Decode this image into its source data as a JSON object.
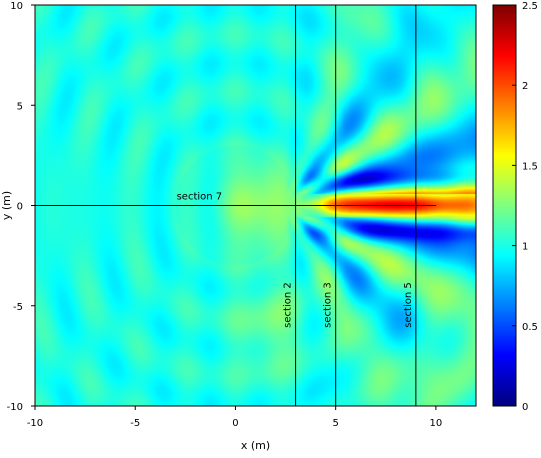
{
  "chart_data": {
    "type": "heatmap",
    "title": "",
    "xlabel": "x (m)",
    "ylabel": "y (m)",
    "xlim": [
      -10,
      12
    ],
    "ylim": [
      -10,
      10
    ],
    "x_ticks": [
      -10,
      -5,
      0,
      5,
      10
    ],
    "y_ticks": [
      -10,
      -5,
      0,
      5,
      10
    ],
    "colorbar": {
      "range": [
        0,
        2.5
      ],
      "ticks": [
        0,
        0.5,
        1,
        1.5,
        2,
        2.5
      ],
      "colormap": "jet"
    },
    "vertical_sections": [
      {
        "label": "section 2",
        "x": 3
      },
      {
        "label": "section 3",
        "x": 5
      },
      {
        "label": "section 5",
        "x": 9
      }
    ],
    "horizontal_sections": [
      {
        "label": "section 7",
        "y": 0,
        "x_range": [
          -10,
          10
        ]
      }
    ],
    "field_description": {
      "background_value": 1.0,
      "peak_value": 2.4,
      "peak_location": [
        7.5,
        0
      ]
    }
  }
}
